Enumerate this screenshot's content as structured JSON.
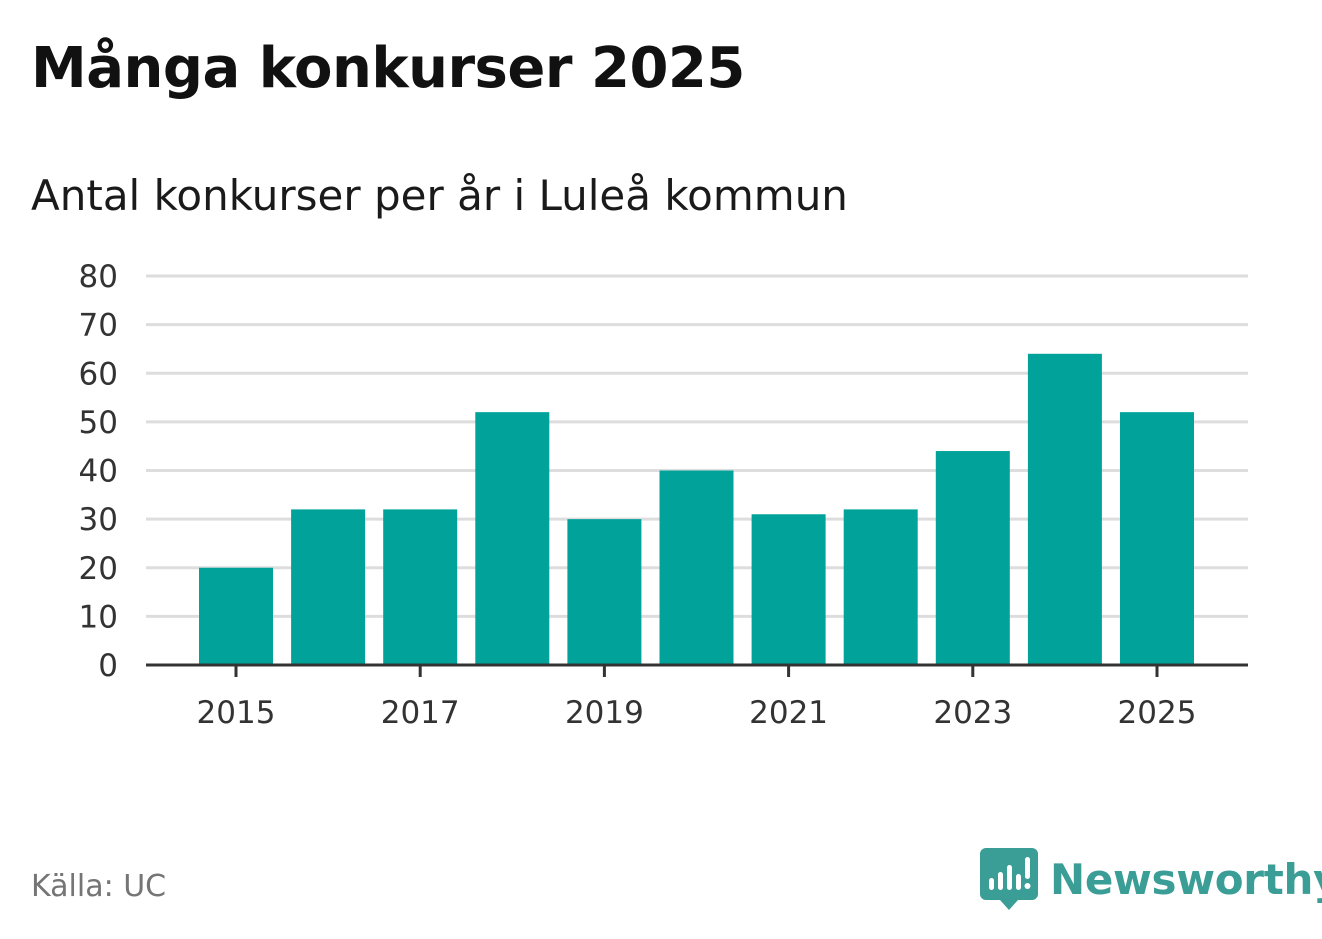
{
  "title": "Många konkurser 2025",
  "subtitle": "Antal konkurser per år i Luleå kommun",
  "source": "Källa: UC",
  "brand": {
    "name": "Newsworthy",
    "icon": "newsworthy-logo-icon"
  },
  "colors": {
    "bar": "#00a29a",
    "grid": "#dddddd",
    "axis": "#333333",
    "brand": "#3a9d96"
  },
  "chart_data": {
    "type": "bar",
    "categories": [
      "2015",
      "2016",
      "2017",
      "2018",
      "2019",
      "2020",
      "2021",
      "2022",
      "2023",
      "2024",
      "2025"
    ],
    "values": [
      20,
      32,
      32,
      52,
      30,
      40,
      31,
      32,
      44,
      64,
      52
    ],
    "x_tick_labels": [
      "2015",
      "2017",
      "2019",
      "2021",
      "2023",
      "2025"
    ],
    "y_ticks": [
      0,
      10,
      20,
      30,
      40,
      50,
      60,
      70,
      80
    ],
    "ylim": [
      0,
      80
    ],
    "xlabel": "",
    "ylabel": "",
    "grid": true
  }
}
